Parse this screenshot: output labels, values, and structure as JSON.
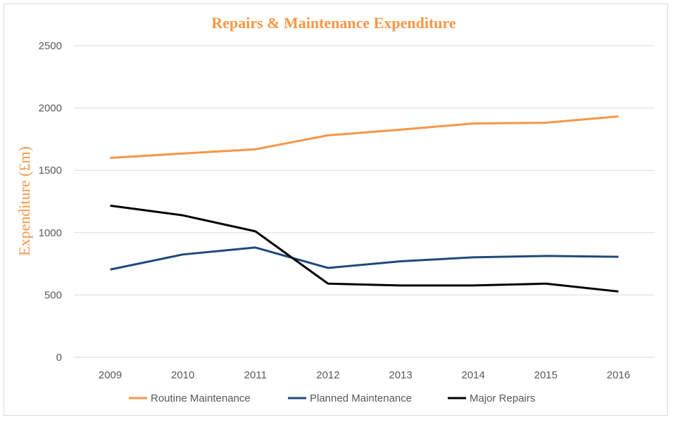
{
  "chart_data": {
    "type": "line",
    "title": "Repairs & Maintenance Expenditure",
    "xlabel": "",
    "ylabel": "Expenditure (£m)",
    "categories": [
      "2009",
      "2010",
      "2011",
      "2012",
      "2013",
      "2014",
      "2015",
      "2016"
    ],
    "ylim": [
      0,
      2500
    ],
    "yticks": [
      0,
      500,
      1000,
      1500,
      2000,
      2500
    ],
    "grid": true,
    "legend": "bottom",
    "title_color": "#f79646",
    "series": [
      {
        "name": "Routine Maintenance",
        "color": "#f79646",
        "values": [
          1600,
          1635,
          1669,
          1781,
          1826,
          1876,
          1882,
          1933
        ]
      },
      {
        "name": "Planned Maintenance",
        "color": "#1f497d",
        "values": [
          704,
          825,
          881,
          717,
          770,
          802,
          813,
          806
        ]
      },
      {
        "name": "Major Repairs",
        "color": "#000000",
        "values": [
          1217,
          1139,
          1011,
          591,
          576,
          576,
          591,
          528
        ]
      }
    ]
  }
}
